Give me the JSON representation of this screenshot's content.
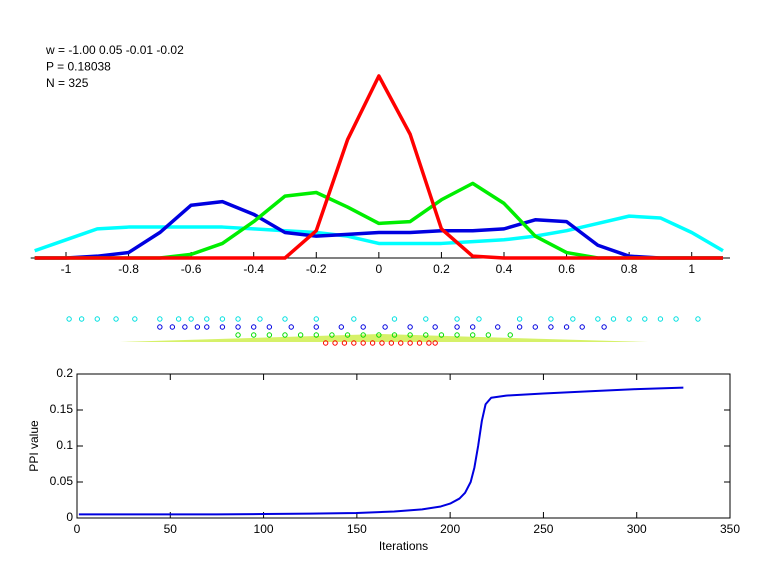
{
  "chart_data": [
    {
      "type": "line",
      "annotations": [
        "w = -1.00  0.05  -0.01  -0.02",
        "P = 0.18038",
        "N = 325"
      ],
      "x": [
        -1.1,
        -1.0,
        -0.9,
        -0.8,
        -0.7,
        -0.6,
        -0.5,
        -0.4,
        -0.3,
        -0.2,
        -0.1,
        0,
        0.1,
        0.2,
        0.3,
        0.4,
        0.5,
        0.6,
        0.7,
        0.8,
        0.9,
        1.0,
        1.1
      ],
      "series": [
        {
          "color": "#00ffff",
          "values": [
            0.04,
            0.1,
            0.16,
            0.17,
            0.17,
            0.17,
            0.17,
            0.16,
            0.15,
            0.14,
            0.12,
            0.08,
            0.08,
            0.08,
            0.09,
            0.1,
            0.12,
            0.15,
            0.19,
            0.23,
            0.22,
            0.14,
            0.04
          ]
        },
        {
          "color": "#0000e0",
          "values": [
            0,
            0,
            0.01,
            0.03,
            0.14,
            0.29,
            0.31,
            0.24,
            0.14,
            0.12,
            0.13,
            0.14,
            0.14,
            0.15,
            0.15,
            0.16,
            0.21,
            0.2,
            0.07,
            0.01,
            0,
            0,
            0
          ]
        },
        {
          "color": "#00ee00",
          "values": [
            0,
            0,
            0,
            0,
            0,
            0.02,
            0.08,
            0.2,
            0.34,
            0.36,
            0.28,
            0.19,
            0.2,
            0.32,
            0.41,
            0.3,
            0.12,
            0.03,
            0,
            0,
            0,
            0,
            0
          ]
        },
        {
          "color": "#ff0000",
          "values": [
            0,
            0,
            0,
            0,
            0,
            0,
            0,
            0,
            0,
            0.15,
            0.65,
            1,
            0.68,
            0.16,
            0.01,
            0,
            0,
            0,
            0,
            0,
            0,
            0,
            0
          ]
        }
      ],
      "xlim": [
        -1.1,
        1.1
      ],
      "xticks": [
        -1,
        -0.8,
        -0.6,
        -0.4,
        -0.2,
        0,
        0.2,
        0.4,
        0.6,
        0.8,
        1
      ]
    },
    {
      "type": "strip",
      "series": [
        {
          "color": "#00e0e0",
          "values": [
            -0.99,
            -0.95,
            -0.9,
            -0.84,
            -0.78,
            -0.7,
            -0.64,
            -0.6,
            -0.55,
            -0.5,
            -0.45,
            -0.38,
            -0.3,
            -0.2,
            -0.08,
            0.05,
            0.15,
            0.25,
            0.32,
            0.45,
            0.55,
            0.62,
            0.7,
            0.75,
            0.8,
            0.85,
            0.9,
            0.95,
            1.02
          ]
        },
        {
          "color": "#0000e0",
          "values": [
            -0.7,
            -0.66,
            -0.62,
            -0.58,
            -0.55,
            -0.5,
            -0.45,
            -0.4,
            -0.35,
            -0.28,
            -0.2,
            -0.12,
            -0.05,
            0.02,
            0.1,
            0.18,
            0.25,
            0.3,
            0.38,
            0.45,
            0.5,
            0.55,
            0.6,
            0.65,
            0.72
          ]
        },
        {
          "color": "#00dd00",
          "values": [
            -0.45,
            -0.4,
            -0.35,
            -0.3,
            -0.25,
            -0.2,
            -0.15,
            -0.1,
            -0.05,
            0,
            0.05,
            0.1,
            0.15,
            0.2,
            0.25,
            0.3,
            0.35,
            0.42
          ]
        },
        {
          "color": "#ff0000",
          "values": [
            -0.17,
            -0.14,
            -0.11,
            -0.08,
            -0.05,
            -0.02,
            0.01,
            0.04,
            0.07,
            0.1,
            0.13,
            0.16,
            0.18
          ]
        }
      ],
      "xlim": [
        -1.1,
        1.1
      ]
    },
    {
      "type": "line",
      "xlabel": "Iterations",
      "ylabel": "PPI value",
      "x": [
        1,
        25,
        50,
        75,
        100,
        125,
        150,
        170,
        185,
        195,
        200,
        205,
        208,
        211,
        213,
        215,
        217,
        219,
        222,
        230,
        250,
        275,
        300,
        325
      ],
      "series": [
        {
          "color": "#0000e0",
          "values": [
            0.005,
            0.005,
            0.005,
            0.005,
            0.0055,
            0.006,
            0.007,
            0.009,
            0.012,
            0.016,
            0.02,
            0.027,
            0.035,
            0.05,
            0.07,
            0.1,
            0.135,
            0.158,
            0.167,
            0.17,
            0.173,
            0.176,
            0.179,
            0.181
          ]
        }
      ],
      "xlim": [
        0,
        350
      ],
      "ylim": [
        0,
        0.2
      ],
      "xticks": [
        0,
        50,
        100,
        150,
        200,
        250,
        300,
        350
      ],
      "yticks": [
        0,
        0.05,
        0.1,
        0.15,
        0.2
      ]
    }
  ]
}
